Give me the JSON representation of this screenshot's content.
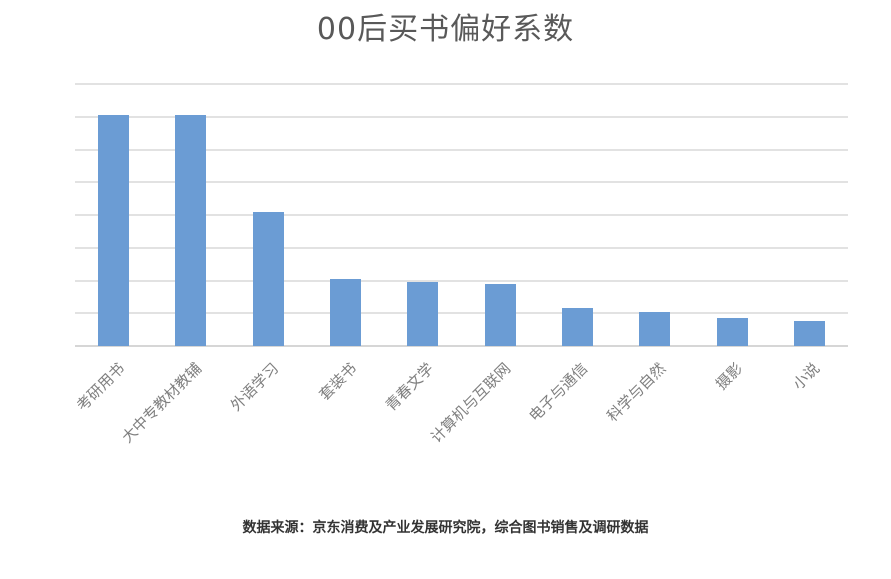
{
  "chart_data": {
    "type": "bar",
    "title": "00后买书偏好系数",
    "categories": [
      "考研用书",
      "大中专教材教辅",
      "外语学习",
      "套装书",
      "青春文学",
      "计算机与互联网",
      "电子与通信",
      "科学与自然",
      "摄影",
      "小说"
    ],
    "values": [
      7.05,
      7.05,
      4.1,
      2.05,
      1.95,
      1.9,
      1.15,
      1.05,
      0.85,
      0.75
    ],
    "xlabel": "",
    "ylabel": "",
    "ylim": [
      0,
      8
    ],
    "gridline_interval": 1,
    "grid": true,
    "y_tick_labels_visible": false,
    "legend_position": "none",
    "bar_color": "#6b9cd4",
    "gridline_color": "#e2e2e2",
    "axis_line_color": "#d6d6d6",
    "xlabel_color": "#7f7f7f",
    "title_color": "#595959"
  },
  "footer": {
    "source_text": "数据来源：京东消费及产业发展研究院，综合图书销售及调研数据"
  }
}
